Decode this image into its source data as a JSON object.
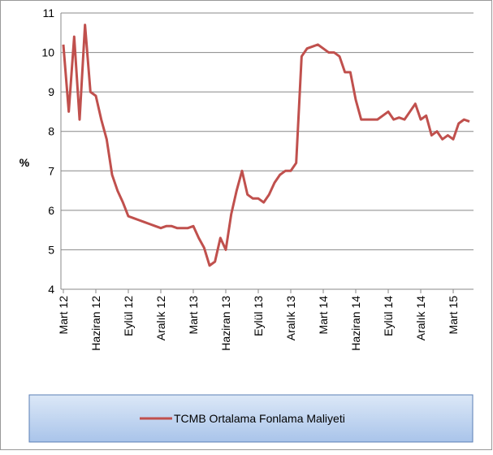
{
  "chart_data": {
    "type": "line",
    "y_label": "%",
    "categories": [
      "Mart 12",
      null,
      null,
      null,
      null,
      null,
      "Haziran 12",
      null,
      null,
      null,
      null,
      null,
      "Eylül 12",
      null,
      null,
      null,
      null,
      null,
      "Aralık 12",
      null,
      null,
      null,
      null,
      null,
      "Mart 13",
      null,
      null,
      null,
      null,
      null,
      "Haziran 13",
      null,
      null,
      null,
      null,
      null,
      "Eylül 13",
      null,
      null,
      null,
      null,
      null,
      "Aralık 13",
      null,
      null,
      null,
      null,
      null,
      "Mart 14",
      null,
      null,
      null,
      null,
      null,
      "Haziran 14",
      null,
      null,
      null,
      null,
      null,
      "Eylül 14",
      null,
      null,
      null,
      null,
      null,
      "Aralık 14",
      null,
      null,
      null,
      null,
      null,
      "Mart 15",
      null,
      null,
      null
    ],
    "series": [
      {
        "name": "TCMB Ortalama Fonlama Maliyeti",
        "color": "#c0504d",
        "values": [
          10.2,
          8.5,
          10.4,
          8.3,
          10.7,
          9.0,
          8.9,
          8.3,
          7.8,
          6.9,
          6.5,
          6.2,
          5.85,
          5.8,
          5.75,
          5.7,
          5.65,
          5.6,
          5.55,
          5.6,
          5.6,
          5.55,
          5.55,
          5.55,
          5.6,
          5.3,
          5.05,
          4.6,
          4.7,
          5.3,
          5.0,
          5.9,
          6.5,
          7.0,
          6.4,
          6.3,
          6.3,
          6.2,
          6.4,
          6.7,
          6.9,
          7.0,
          7.0,
          7.2,
          9.9,
          10.1,
          10.15,
          10.2,
          10.1,
          10.0,
          10.0,
          9.9,
          9.5,
          9.5,
          8.8,
          8.3,
          8.3,
          8.3,
          8.3,
          8.4,
          8.5,
          8.3,
          8.35,
          8.3,
          8.5,
          8.7,
          8.3,
          8.4,
          7.9,
          8.0,
          7.8,
          7.9,
          7.8,
          8.2,
          8.3,
          8.25
        ]
      }
    ],
    "ylim": [
      4,
      11
    ],
    "yticks": [
      4,
      5,
      6,
      7,
      8,
      9,
      10,
      11
    ],
    "grid": true,
    "legend": "bottom"
  }
}
